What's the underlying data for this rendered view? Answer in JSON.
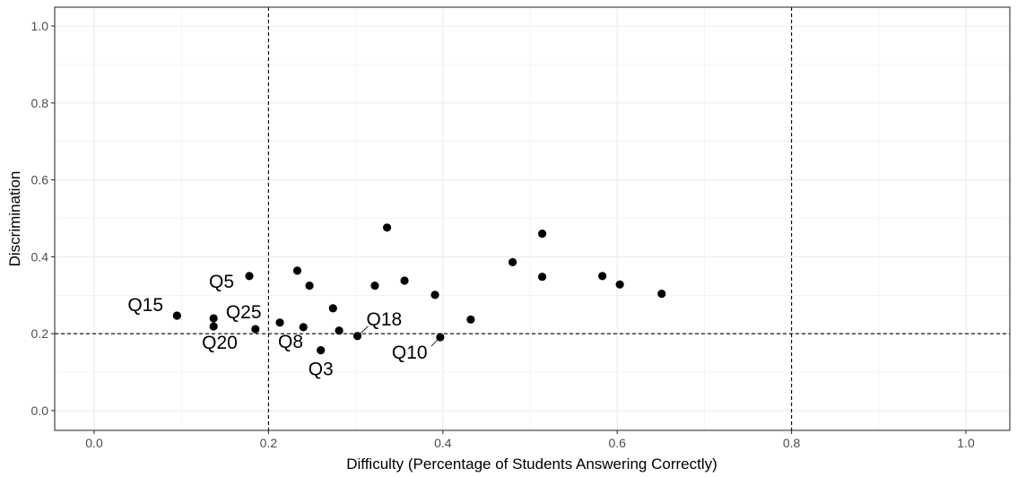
{
  "chart_data": {
    "type": "scatter",
    "title": "",
    "xlabel": "Difficulty (Percentage of Students Answering Correctly)",
    "ylabel": "Discrimination",
    "xlim": [
      0,
      1
    ],
    "ylim": [
      0,
      1
    ],
    "x_ticks": [
      "0.0",
      "0.2",
      "0.4",
      "0.6",
      "0.8",
      "1.0"
    ],
    "y_ticks": [
      "0.0",
      "0.2",
      "0.4",
      "0.6",
      "0.8",
      "1.0"
    ],
    "grid": true,
    "reference_lines": {
      "vertical": [
        0.2,
        0.8
      ],
      "horizontal": [
        0.2
      ],
      "style": "dashed"
    },
    "colors": {
      "point": "#000000",
      "grid": "#ebebeb",
      "panel_border": "#333333",
      "reference_line": "#000000"
    },
    "points": [
      {
        "x": 0.095,
        "y": 0.247,
        "label": "Q15"
      },
      {
        "x": 0.137,
        "y": 0.219,
        "label": "Q20"
      },
      {
        "x": 0.137,
        "y": 0.24
      },
      {
        "x": 0.178,
        "y": 0.35,
        "label": "Q5"
      },
      {
        "x": 0.185,
        "y": 0.212,
        "label": "Q25"
      },
      {
        "x": 0.213,
        "y": 0.229,
        "label": "Q8"
      },
      {
        "x": 0.233,
        "y": 0.364
      },
      {
        "x": 0.24,
        "y": 0.217
      },
      {
        "x": 0.247,
        "y": 0.325
      },
      {
        "x": 0.26,
        "y": 0.157,
        "label": "Q3"
      },
      {
        "x": 0.274,
        "y": 0.266
      },
      {
        "x": 0.281,
        "y": 0.208
      },
      {
        "x": 0.302,
        "y": 0.194,
        "label": "Q18"
      },
      {
        "x": 0.322,
        "y": 0.325
      },
      {
        "x": 0.336,
        "y": 0.476
      },
      {
        "x": 0.356,
        "y": 0.338
      },
      {
        "x": 0.391,
        "y": 0.301
      },
      {
        "x": 0.397,
        "y": 0.191,
        "label": "Q10"
      },
      {
        "x": 0.432,
        "y": 0.237
      },
      {
        "x": 0.48,
        "y": 0.386
      },
      {
        "x": 0.514,
        "y": 0.46
      },
      {
        "x": 0.514,
        "y": 0.348
      },
      {
        "x": 0.583,
        "y": 0.35
      },
      {
        "x": 0.603,
        "y": 0.328
      },
      {
        "x": 0.651,
        "y": 0.304
      }
    ]
  }
}
